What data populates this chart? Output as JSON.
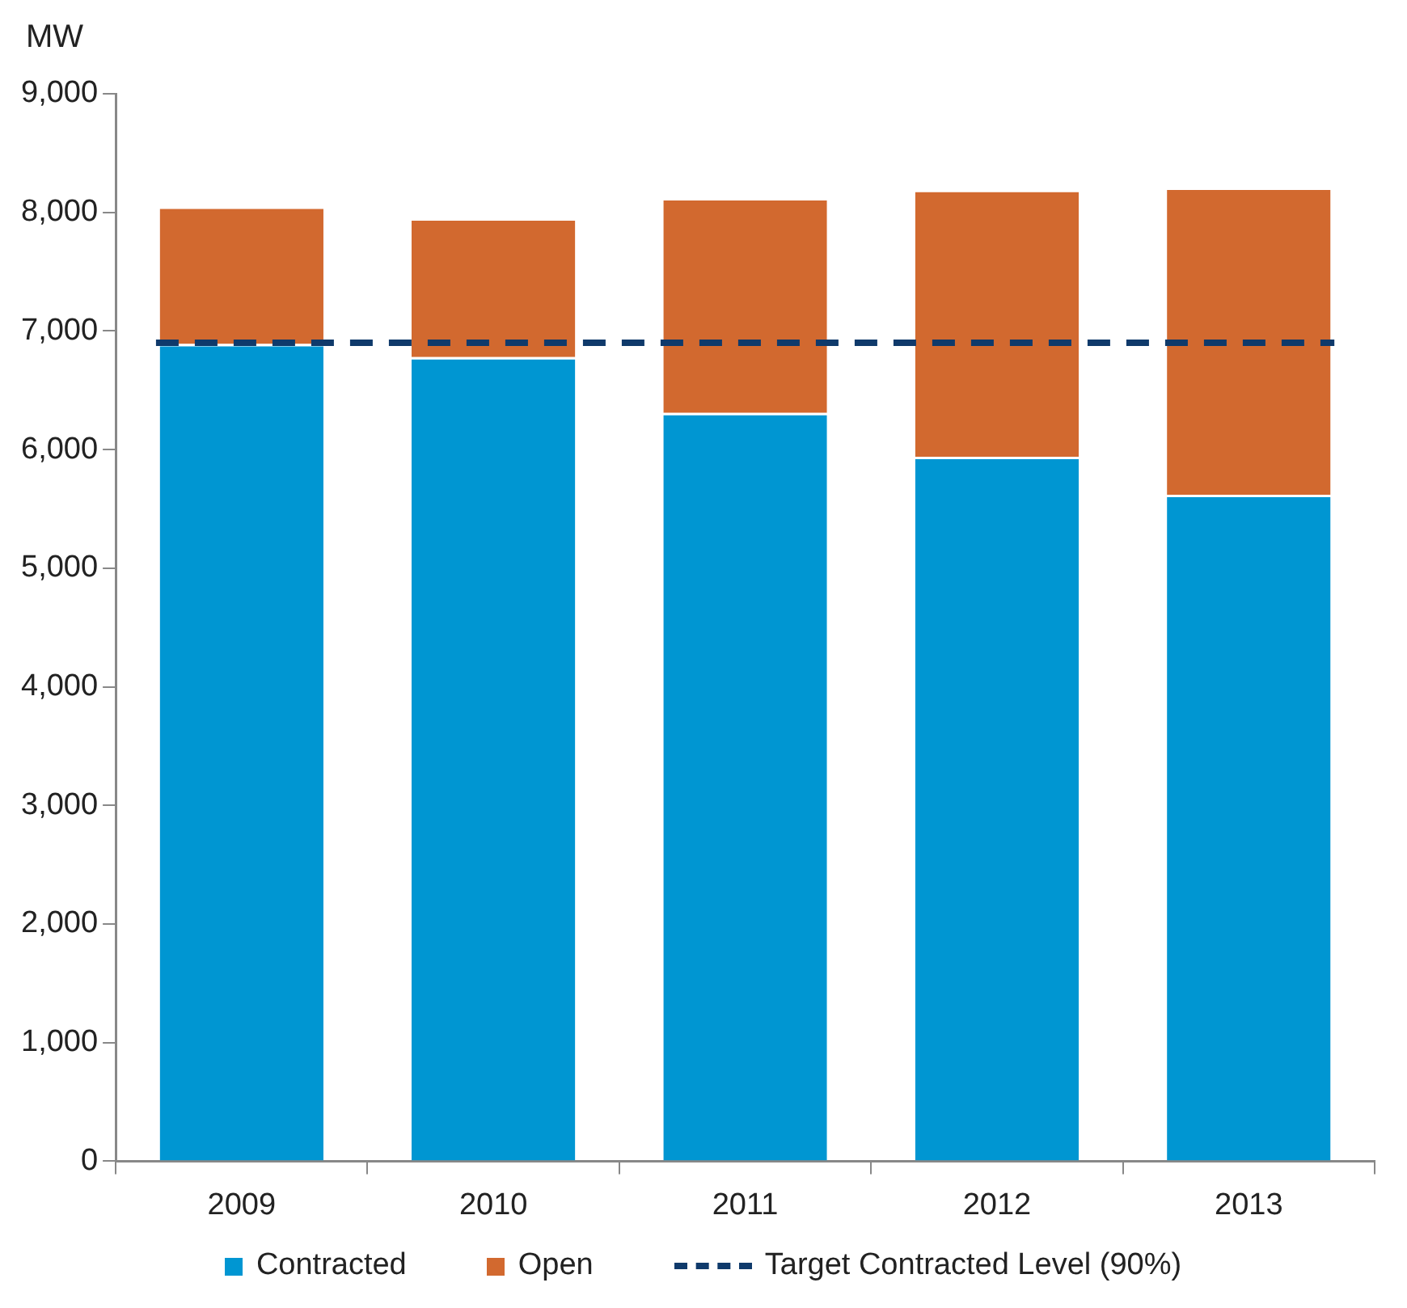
{
  "chart_data": {
    "type": "bar",
    "stacked": true,
    "ylabel": "MW",
    "categories": [
      "2009",
      "2010",
      "2011",
      "2012",
      "2013"
    ],
    "series": [
      {
        "name": "Contracted",
        "color": "#0096d2",
        "values": [
          6890,
          6780,
          6310,
          5940,
          5620
        ]
      },
      {
        "name": "Open",
        "color": "#d2692f",
        "values": [
          1160,
          1170,
          1810,
          2250,
          2590
        ]
      }
    ],
    "ylim": [
      0,
      9000
    ],
    "yticks": [
      {
        "value": 0,
        "label": "0"
      },
      {
        "value": 1000,
        "label": "1,000"
      },
      {
        "value": 2000,
        "label": "2,000"
      },
      {
        "value": 3000,
        "label": "3,000"
      },
      {
        "value": 4000,
        "label": "4,000"
      },
      {
        "value": 5000,
        "label": "5,000"
      },
      {
        "value": 6000,
        "label": "6,000"
      },
      {
        "value": 7000,
        "label": "7,000"
      },
      {
        "value": 8000,
        "label": "8,000"
      },
      {
        "value": 9000,
        "label": "9,000"
      }
    ],
    "ref_lines": [
      {
        "axis": "y",
        "value": 6900,
        "label": "Target Contracted Level (90%)",
        "color": "#0f3a6b",
        "line_style": "dashed"
      }
    ],
    "grid": false,
    "legend": "bottom"
  }
}
